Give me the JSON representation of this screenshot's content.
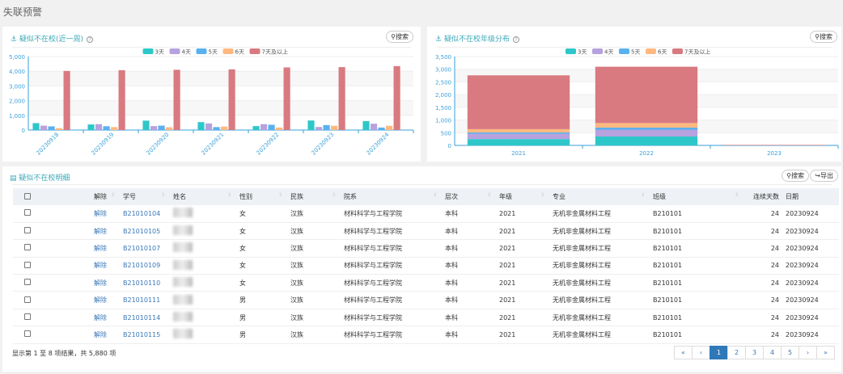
{
  "page_title": "失联预警",
  "search_label": "搜索",
  "export_label": "导出",
  "legend": [
    "3天",
    "4天",
    "5天",
    "6天",
    "7天及以上"
  ],
  "colors": [
    "#2ec7c9",
    "#b6a2de",
    "#5ab1ef",
    "#ffb980",
    "#d87a80"
  ],
  "chart_data": [
    {
      "type": "bar",
      "title": "疑似不在校(近一周)",
      "categories": [
        "20230918",
        "20230919",
        "20230920",
        "20230921",
        "20230922",
        "20230923",
        "20230924"
      ],
      "ylim": [
        0,
        5000
      ],
      "yticks": [
        "0",
        "1,000",
        "2,000",
        "3,000",
        "4,000",
        "5,000"
      ],
      "series": [
        {
          "name": "3天",
          "values": [
            470,
            380,
            640,
            540,
            270,
            650,
            610
          ]
        },
        {
          "name": "4天",
          "values": [
            300,
            400,
            270,
            450,
            400,
            210,
            430
          ]
        },
        {
          "name": "5天",
          "values": [
            250,
            260,
            300,
            200,
            360,
            340,
            170
          ]
        },
        {
          "name": "6天",
          "values": [
            130,
            200,
            190,
            240,
            170,
            290,
            290
          ]
        },
        {
          "name": "7天及以上",
          "values": [
            4020,
            4070,
            4100,
            4130,
            4260,
            4280,
            4350
          ]
        }
      ]
    },
    {
      "type": "bar",
      "stacked": true,
      "title": "疑似不在校年级分布",
      "categories": [
        "2021",
        "2022",
        "2023"
      ],
      "ylim": [
        0,
        3500
      ],
      "yticks": [
        "0",
        "500",
        "1,000",
        "1,500",
        "2,000",
        "2,500",
        "3,000",
        "3,500"
      ],
      "series": [
        {
          "name": "3天",
          "values": [
            250,
            350,
            0
          ]
        },
        {
          "name": "4天",
          "values": [
            210,
            270,
            0
          ]
        },
        {
          "name": "5天",
          "values": [
            50,
            80,
            0
          ]
        },
        {
          "name": "6天",
          "values": [
            130,
            180,
            0
          ]
        },
        {
          "name": "7天及以上",
          "values": [
            2120,
            2220,
            20
          ]
        }
      ]
    }
  ],
  "table": {
    "title": "疑似不在校明细",
    "headers": [
      "解除",
      "学号",
      "姓名",
      "性别",
      "民族",
      "院系",
      "层次",
      "年级",
      "专业",
      "班级",
      "连续天数",
      "日期"
    ],
    "rows": [
      [
        "解除",
        "B21010104",
        "",
        "女",
        "汉族",
        "材料科学与工程学院",
        "本科",
        "2021",
        "无机非金属材料工程",
        "B210101",
        "24",
        "20230924"
      ],
      [
        "解除",
        "B21010105",
        "",
        "女",
        "汉族",
        "材料科学与工程学院",
        "本科",
        "2021",
        "无机非金属材料工程",
        "B210101",
        "24",
        "20230924"
      ],
      [
        "解除",
        "B21010107",
        "",
        "女",
        "汉族",
        "材料科学与工程学院",
        "本科",
        "2021",
        "无机非金属材料工程",
        "B210101",
        "24",
        "20230924"
      ],
      [
        "解除",
        "B21010109",
        "",
        "女",
        "汉族",
        "材料科学与工程学院",
        "本科",
        "2021",
        "无机非金属材料工程",
        "B210101",
        "24",
        "20230924"
      ],
      [
        "解除",
        "B21010110",
        "",
        "女",
        "汉族",
        "材料科学与工程学院",
        "本科",
        "2021",
        "无机非金属材料工程",
        "B210101",
        "24",
        "20230924"
      ],
      [
        "解除",
        "B21010111",
        "",
        "男",
        "汉族",
        "材料科学与工程学院",
        "本科",
        "2021",
        "无机非金属材料工程",
        "B210101",
        "24",
        "20230924"
      ],
      [
        "解除",
        "B21010114",
        "",
        "男",
        "汉族",
        "材料科学与工程学院",
        "本科",
        "2021",
        "无机非金属材料工程",
        "B210101",
        "24",
        "20230924"
      ],
      [
        "解除",
        "B21010115",
        "",
        "男",
        "汉族",
        "材料科学与工程学院",
        "本科",
        "2021",
        "无机非金属材料工程",
        "B210101",
        "24",
        "20230924"
      ]
    ],
    "footer": "显示第 1 至 8 项结果，共 5,880 项",
    "pages": [
      "«",
      "‹",
      "1",
      "2",
      "3",
      "4",
      "5",
      "›",
      "»"
    ],
    "current_page": "1"
  }
}
